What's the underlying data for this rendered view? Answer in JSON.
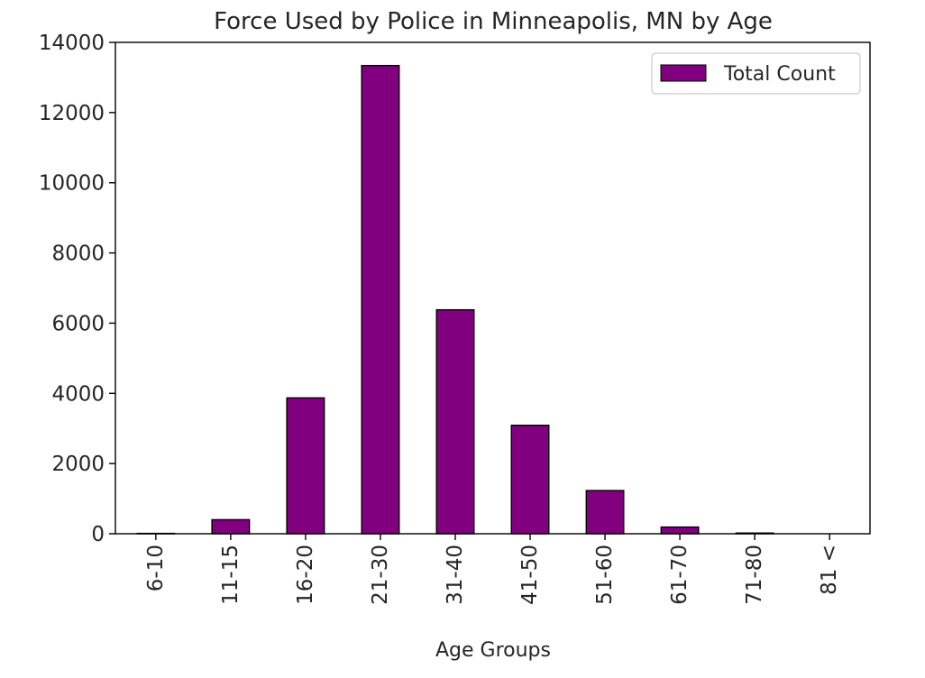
{
  "chart_data": {
    "type": "bar",
    "title": "Force Used by Police in Minneapolis, MN by Age",
    "xlabel": "Age Groups",
    "ylabel": "",
    "categories": [
      "6-10",
      "11-15",
      "16-20",
      "21-30",
      "31-40",
      "41-50",
      "51-60",
      "61-70",
      "71-80",
      "81 <"
    ],
    "series": [
      {
        "name": "Total Count",
        "color": "#800080",
        "values": [
          10,
          400,
          3870,
          13340,
          6380,
          3090,
          1230,
          190,
          20,
          0
        ]
      }
    ],
    "ylim": [
      0,
      14000
    ],
    "yticks": [
      0,
      2000,
      4000,
      6000,
      8000,
      10000,
      12000,
      14000
    ],
    "grid": false,
    "legend_position": "top-right"
  }
}
